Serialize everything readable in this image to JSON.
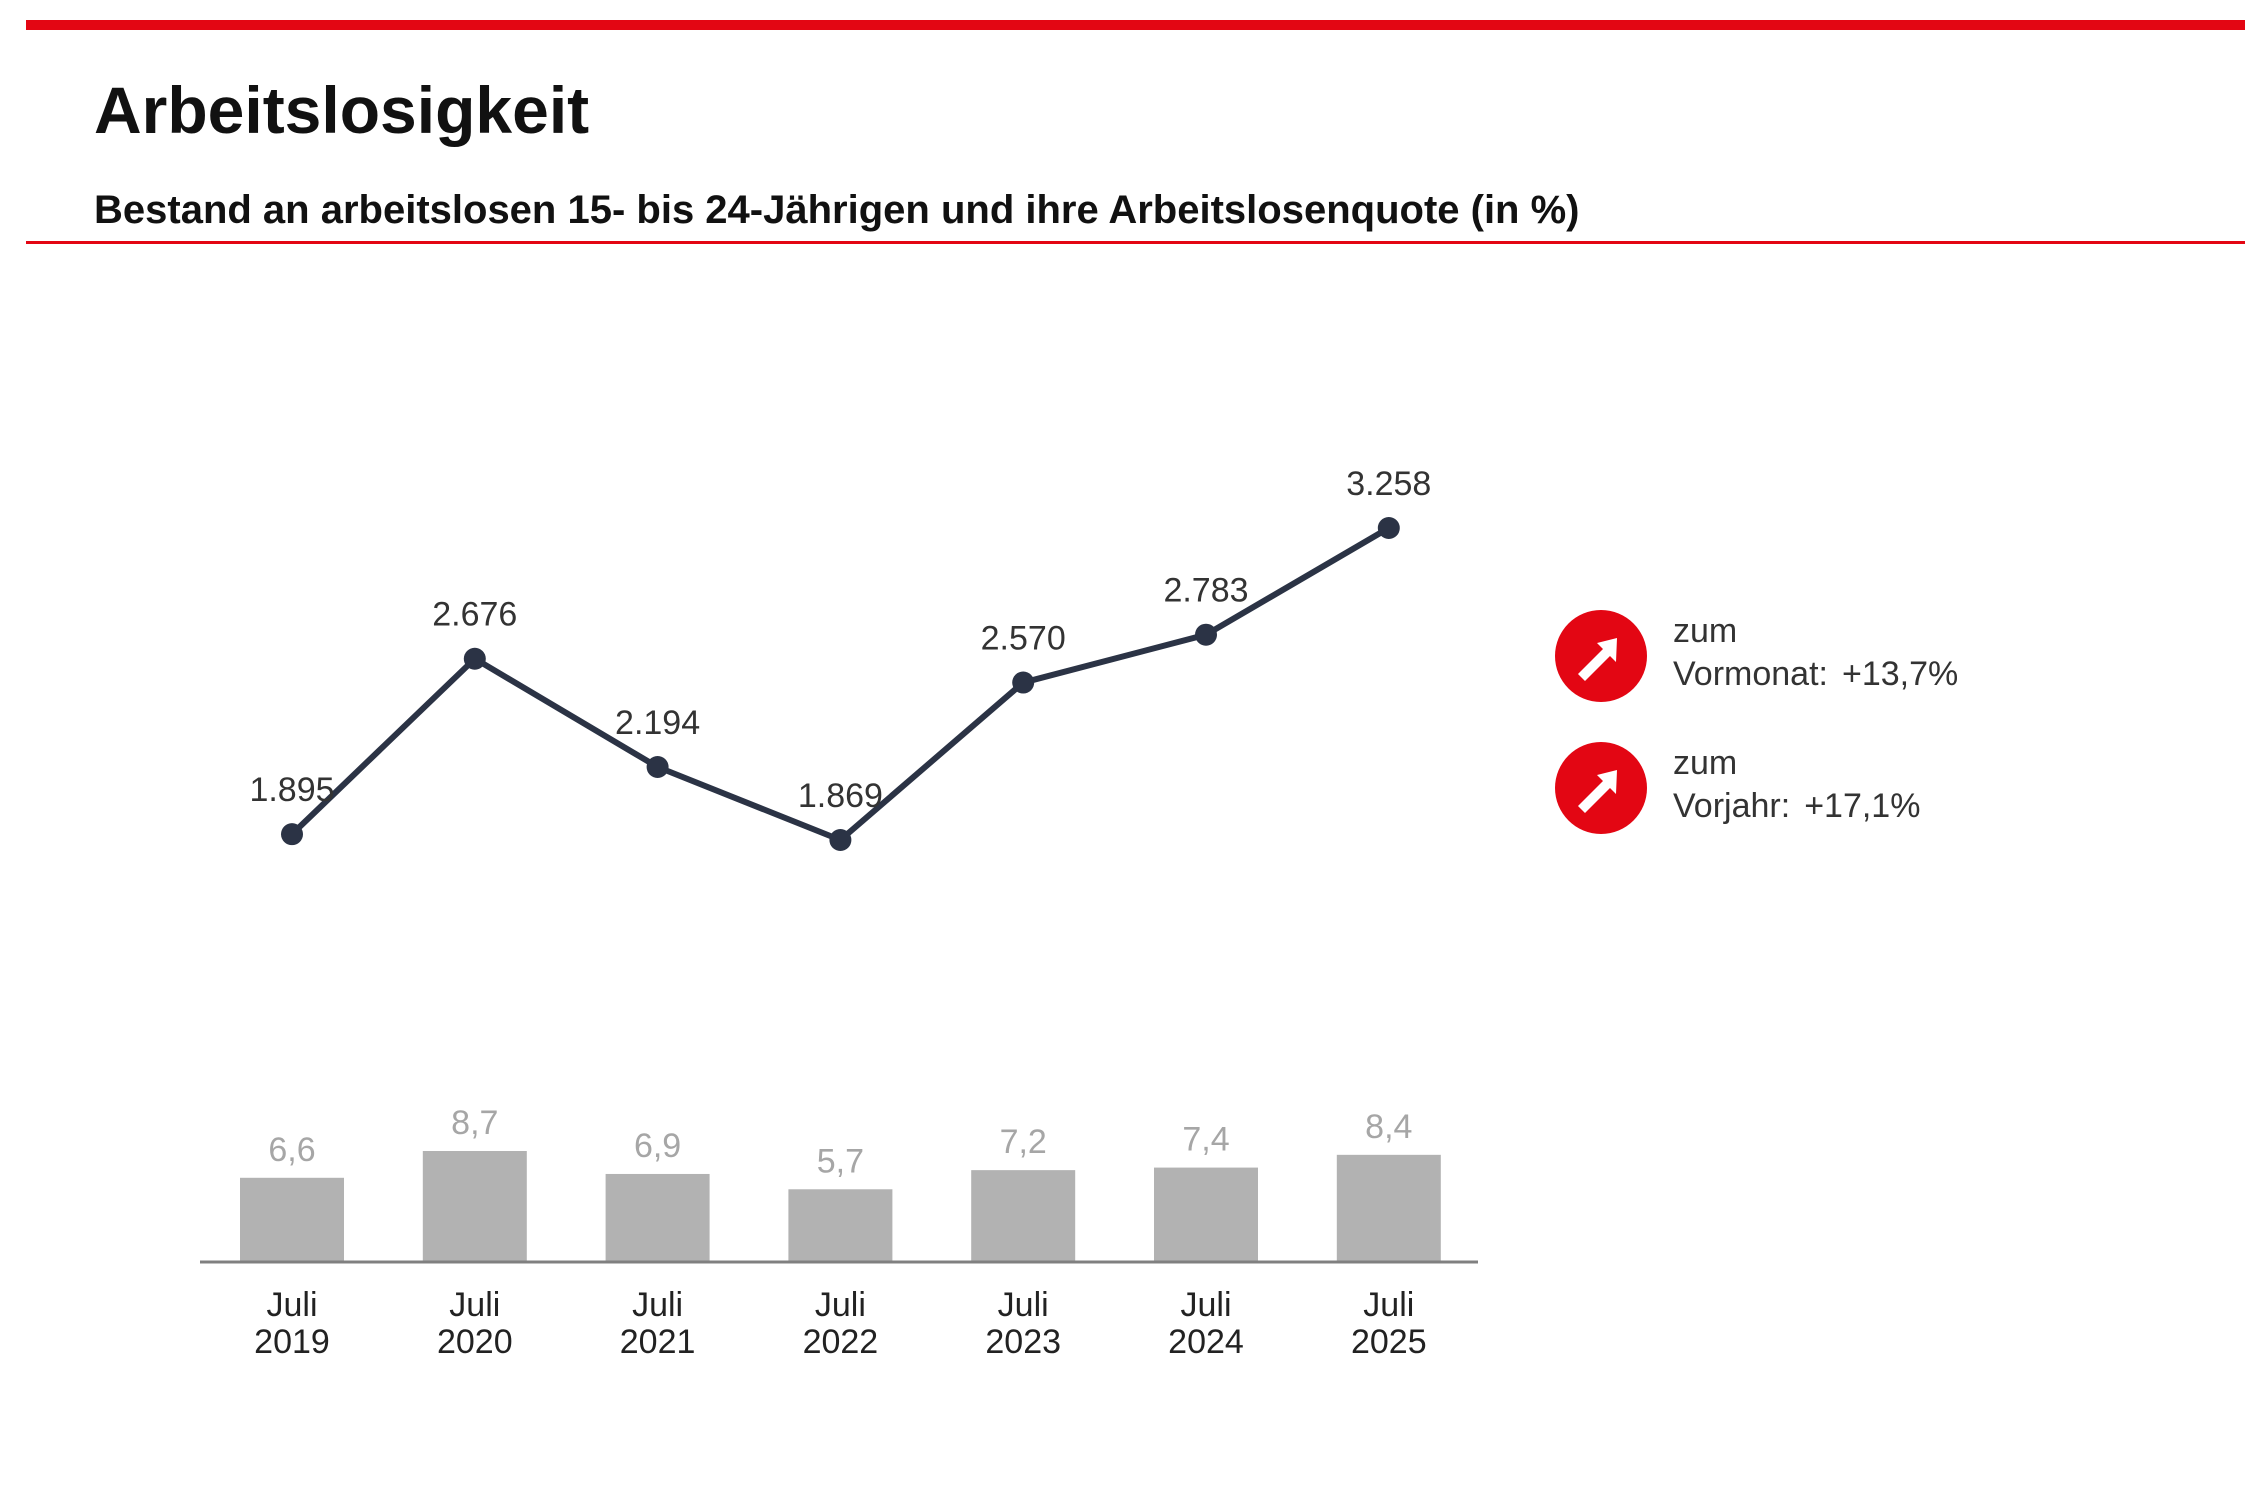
{
  "header": {
    "title": "Arbeitslosigkeit",
    "subtitle": "Bestand an arbeitslosen 15- bis 24-Jährigen und ihre Arbeitslosenquote (in %)"
  },
  "colors": {
    "accent": "#e30613",
    "line": "#2b3345",
    "bar": "#b2b2b2",
    "bar_label": "#a6a6a6",
    "axis": "#808080"
  },
  "chart_data": [
    {
      "type": "line",
      "categories": [
        "Juli 2019",
        "Juli 2020",
        "Juli 2021",
        "Juli 2022",
        "Juli 2023",
        "Juli 2024",
        "Juli 2025"
      ],
      "values": [
        1895,
        2676,
        2194,
        1869,
        2570,
        2783,
        3258
      ],
      "value_labels": [
        "1.895",
        "2.676",
        "2.194",
        "1.869",
        "2.570",
        "2.783",
        "3.258"
      ],
      "axis_visible": false
    },
    {
      "type": "bar",
      "categories": [
        "Juli 2019",
        "Juli 2020",
        "Juli 2021",
        "Juli 2022",
        "Juli 2023",
        "Juli 2024",
        "Juli 2025"
      ],
      "x_labels": [
        [
          "Juli",
          "2019"
        ],
        [
          "Juli",
          "2020"
        ],
        [
          "Juli",
          "2021"
        ],
        [
          "Juli",
          "2022"
        ],
        [
          "Juli",
          "2023"
        ],
        [
          "Juli",
          "2024"
        ],
        [
          "Juli",
          "2025"
        ]
      ],
      "values": [
        6.6,
        8.7,
        6.9,
        5.7,
        7.2,
        7.4,
        8.4
      ],
      "value_labels": [
        "6,6",
        "8,7",
        "6,9",
        "5,7",
        "7,2",
        "7,4",
        "8,4"
      ]
    }
  ],
  "trends": [
    {
      "icon": "arrow-up-right-icon",
      "line1": "zum",
      "line2": "Vormonat:",
      "value": "+13,7%"
    },
    {
      "icon": "arrow-up-right-icon",
      "line1": "zum",
      "line2": "Vorjahr:",
      "value": "+17,1%"
    }
  ]
}
